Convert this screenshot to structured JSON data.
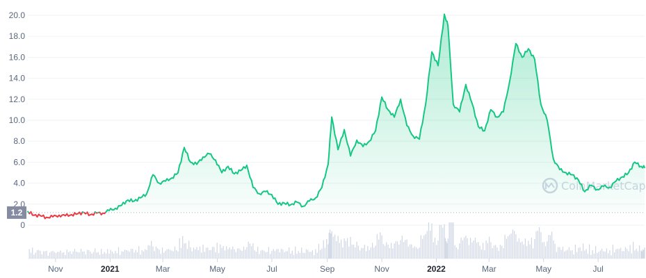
{
  "chart_data": {
    "type": "area",
    "y_ticks": [
      "20.0",
      "18.0",
      "16.0",
      "14.0",
      "12.0",
      "10.0",
      "8.0",
      "6.0",
      "4.0",
      "2.0",
      "0"
    ],
    "ylim": [
      0,
      21
    ],
    "x_ticks": [
      {
        "label": "Nov",
        "date": "2020-11-01",
        "bold": false
      },
      {
        "label": "2021",
        "date": "2021-01-01",
        "bold": true
      },
      {
        "label": "Mar",
        "date": "2021-03-01",
        "bold": false
      },
      {
        "label": "May",
        "date": "2021-05-01",
        "bold": false
      },
      {
        "label": "Jul",
        "date": "2021-07-01",
        "bold": false
      },
      {
        "label": "Sep",
        "date": "2021-09-01",
        "bold": false
      },
      {
        "label": "Nov",
        "date": "2021-11-01",
        "bold": false
      },
      {
        "label": "2022",
        "date": "2022-01-01",
        "bold": true
      },
      {
        "label": "Mar",
        "date": "2022-03-01",
        "bold": false
      },
      {
        "label": "May",
        "date": "2022-05-01",
        "bold": false
      },
      {
        "label": "Jul",
        "date": "2022-07-01",
        "bold": false
      }
    ],
    "xlim": [
      "2020-10-01",
      "2022-08-22"
    ],
    "reference_value": 1.2,
    "reference_label": "1.2",
    "series": [
      {
        "points": [
          [
            "2020-10-01",
            1.3
          ],
          [
            "2020-10-08",
            0.95
          ],
          [
            "2020-10-15",
            0.9
          ],
          [
            "2020-10-22",
            0.75
          ],
          [
            "2020-10-29",
            0.8
          ],
          [
            "2020-11-05",
            0.95
          ],
          [
            "2020-11-12",
            0.9
          ],
          [
            "2020-11-19",
            1.0
          ],
          [
            "2020-11-26",
            1.1
          ],
          [
            "2020-12-03",
            1.2
          ],
          [
            "2020-12-10",
            1.0
          ],
          [
            "2020-12-17",
            1.15
          ],
          [
            "2020-12-24",
            1.15
          ],
          [
            "2020-12-31",
            1.4
          ],
          [
            "2021-01-07",
            1.6
          ],
          [
            "2021-01-14",
            1.9
          ],
          [
            "2021-01-21",
            2.4
          ],
          [
            "2021-01-28",
            2.3
          ],
          [
            "2021-02-04",
            2.6
          ],
          [
            "2021-02-11",
            3.0
          ],
          [
            "2021-02-18",
            4.8
          ],
          [
            "2021-02-25",
            4.0
          ],
          [
            "2021-03-04",
            4.2
          ],
          [
            "2021-03-11",
            4.5
          ],
          [
            "2021-03-18",
            5.0
          ],
          [
            "2021-03-25",
            7.4
          ],
          [
            "2021-04-01",
            6.0
          ],
          [
            "2021-04-08",
            5.8
          ],
          [
            "2021-04-15",
            6.5
          ],
          [
            "2021-04-22",
            6.8
          ],
          [
            "2021-04-29",
            6.2
          ],
          [
            "2021-05-06",
            5.0
          ],
          [
            "2021-05-13",
            5.6
          ],
          [
            "2021-05-20",
            4.9
          ],
          [
            "2021-05-27",
            5.2
          ],
          [
            "2021-06-03",
            5.7
          ],
          [
            "2021-06-10",
            3.6
          ],
          [
            "2021-06-17",
            3.0
          ],
          [
            "2021-06-24",
            3.2
          ],
          [
            "2021-07-01",
            2.9
          ],
          [
            "2021-07-08",
            2.0
          ],
          [
            "2021-07-15",
            2.1
          ],
          [
            "2021-07-22",
            1.95
          ],
          [
            "2021-07-29",
            2.2
          ],
          [
            "2021-08-05",
            1.8
          ],
          [
            "2021-08-12",
            2.3
          ],
          [
            "2021-08-19",
            2.6
          ],
          [
            "2021-08-26",
            3.6
          ],
          [
            "2021-09-02",
            5.8
          ],
          [
            "2021-09-06",
            10.3
          ],
          [
            "2021-09-13",
            7.2
          ],
          [
            "2021-09-20",
            9.1
          ],
          [
            "2021-09-27",
            6.6
          ],
          [
            "2021-10-04",
            8.1
          ],
          [
            "2021-10-11",
            7.5
          ],
          [
            "2021-10-18",
            8.0
          ],
          [
            "2021-10-25",
            9.0
          ],
          [
            "2021-11-01",
            12.2
          ],
          [
            "2021-11-08",
            11.0
          ],
          [
            "2021-11-15",
            10.3
          ],
          [
            "2021-11-22",
            12.0
          ],
          [
            "2021-11-29",
            9.5
          ],
          [
            "2021-12-06",
            8.5
          ],
          [
            "2021-12-13",
            8.2
          ],
          [
            "2021-12-20",
            11.5
          ],
          [
            "2021-12-27",
            16.5
          ],
          [
            "2022-01-03",
            15.2
          ],
          [
            "2022-01-10",
            20.1
          ],
          [
            "2022-01-14",
            19.0
          ],
          [
            "2022-01-20",
            11.5
          ],
          [
            "2022-01-27",
            10.8
          ],
          [
            "2022-02-03",
            13.4
          ],
          [
            "2022-02-10",
            11.6
          ],
          [
            "2022-02-17",
            9.4
          ],
          [
            "2022-02-24",
            9.0
          ],
          [
            "2022-03-03",
            11.0
          ],
          [
            "2022-03-10",
            10.3
          ],
          [
            "2022-03-17",
            10.8
          ],
          [
            "2022-03-24",
            13.7
          ],
          [
            "2022-03-31",
            17.3
          ],
          [
            "2022-04-07",
            16.0
          ],
          [
            "2022-04-14",
            16.8
          ],
          [
            "2022-04-21",
            15.8
          ],
          [
            "2022-04-28",
            11.5
          ],
          [
            "2022-05-05",
            10.0
          ],
          [
            "2022-05-12",
            6.3
          ],
          [
            "2022-05-19",
            5.3
          ],
          [
            "2022-05-26",
            5.0
          ],
          [
            "2022-06-02",
            4.8
          ],
          [
            "2022-06-09",
            4.3
          ],
          [
            "2022-06-16",
            3.2
          ],
          [
            "2022-06-23",
            3.8
          ],
          [
            "2022-06-30",
            3.4
          ],
          [
            "2022-07-07",
            3.7
          ],
          [
            "2022-07-14",
            3.6
          ],
          [
            "2022-07-21",
            4.2
          ],
          [
            "2022-07-28",
            4.6
          ],
          [
            "2022-08-04",
            5.0
          ],
          [
            "2022-08-11",
            6.0
          ],
          [
            "2022-08-18",
            5.6
          ],
          [
            "2022-08-22",
            5.5
          ]
        ]
      }
    ],
    "colors": {
      "up": "#16c784",
      "down": "#ea3943",
      "grid": "#eff2f5",
      "volume": "#cfd6e4",
      "badge": "#858ca2",
      "axis_text": "#58667e"
    },
    "watermark": "CoinMarketCap",
    "volume_bars": "shown"
  }
}
